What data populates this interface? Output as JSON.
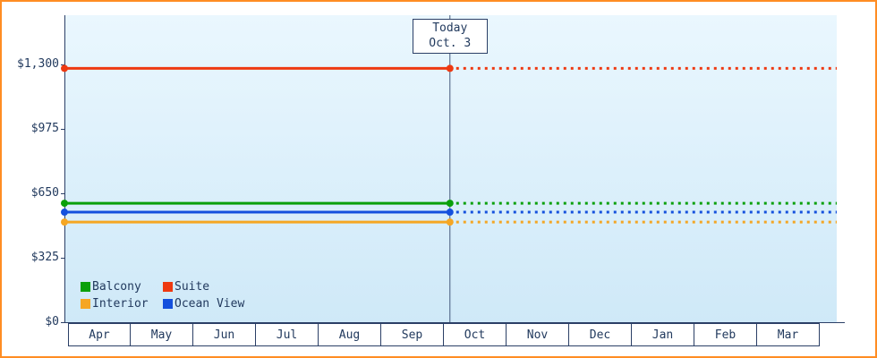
{
  "chart_data": {
    "type": "line",
    "title": "",
    "x_categories": [
      "Apr",
      "May",
      "Jun",
      "Jul",
      "Aug",
      "Sep",
      "Oct",
      "Nov",
      "Dec",
      "Jan",
      "Feb",
      "Mar"
    ],
    "y_ticks": [
      {
        "label": "$0",
        "value": 0
      },
      {
        "label": "$325",
        "value": 325
      },
      {
        "label": "$650",
        "value": 650
      },
      {
        "label": "$975",
        "value": 975
      },
      {
        "label": "$1,300",
        "value": 1300
      }
    ],
    "ylim": [
      0,
      1550
    ],
    "grid": "off",
    "legend_position": "bottom-left",
    "today_marker": {
      "line1": "Today",
      "line2": "Oct. 3",
      "month": "Oct",
      "day": 3
    },
    "series": [
      {
        "name": "Balcony",
        "color": "#0aa00a",
        "value": 600,
        "solid_until_today": true,
        "dotted_after_today": true
      },
      {
        "name": "Suite",
        "color": "#ee3911",
        "value": 1280,
        "solid_until_today": true,
        "dotted_after_today": true
      },
      {
        "name": "Interior",
        "color": "#f5a623",
        "value": 505,
        "solid_until_today": true,
        "dotted_after_today": true
      },
      {
        "name": "Ocean View",
        "color": "#1450dd",
        "value": 555,
        "solid_until_today": true,
        "dotted_after_today": true
      }
    ]
  },
  "colors": {
    "frame_border": "#ff8d23",
    "axis": "#2b3f66",
    "text": "#223a5e",
    "plot_bg_top": "#eaf7fe",
    "plot_bg_bottom": "#cfe9f8"
  }
}
